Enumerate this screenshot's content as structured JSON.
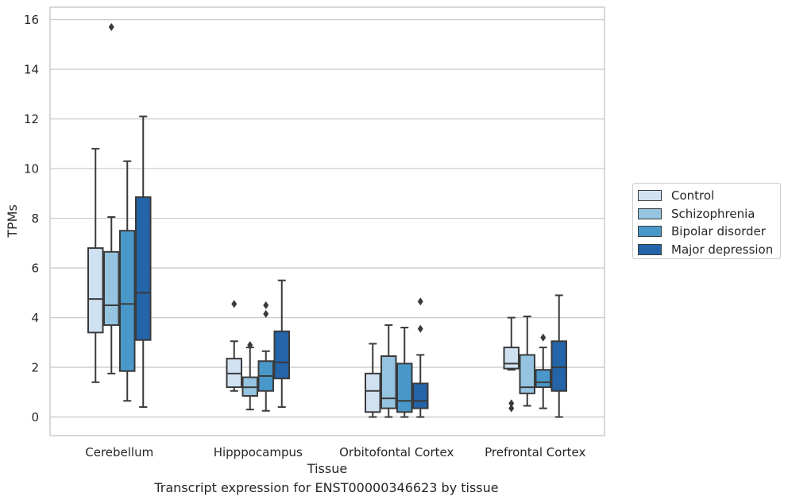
{
  "caption": "Transcript expression for ENST00000346623 by tissue",
  "colors": {
    "Control": "#d0e1f2",
    "Schizophrenia": "#94c4df",
    "Bipolar disorder": "#4a98c9",
    "Major depression": "#2464a8",
    "grid": "#cccccc",
    "box_line": "#3a3a3a"
  },
  "chart_data": {
    "type": "box",
    "xlabel": "Tissue",
    "ylabel": "TPMs",
    "ylim": [
      -0.75,
      16.5
    ],
    "yticks": [
      0,
      2,
      4,
      6,
      8,
      10,
      12,
      14,
      16
    ],
    "grid": "horizontal",
    "legend_position": "right",
    "categories": [
      "Cerebellum",
      "Hipppocampus",
      "Orbitofontal Cortex",
      "Prefrontal Cortex"
    ],
    "series": [
      {
        "name": "Control",
        "boxes": [
          {
            "whisker_low": 1.4,
            "q1": 3.4,
            "median": 4.75,
            "q3": 6.8,
            "whisker_high": 10.8,
            "outliers": []
          },
          {
            "whisker_low": 1.05,
            "q1": 1.2,
            "median": 1.75,
            "q3": 2.35,
            "whisker_high": 3.05,
            "outliers": [
              4.55
            ]
          },
          {
            "whisker_low": 0.0,
            "q1": 0.2,
            "median": 1.05,
            "q3": 1.75,
            "whisker_high": 2.95,
            "outliers": []
          },
          {
            "whisker_low": 1.9,
            "q1": 1.95,
            "median": 2.15,
            "q3": 2.8,
            "whisker_high": 4.0,
            "outliers": [
              0.55,
              0.35
            ]
          }
        ]
      },
      {
        "name": "Schizophrenia",
        "boxes": [
          {
            "whisker_low": 1.75,
            "q1": 3.7,
            "median": 4.5,
            "q3": 6.65,
            "whisker_high": 8.05,
            "outliers": [
              15.7
            ]
          },
          {
            "whisker_low": 0.3,
            "q1": 0.85,
            "median": 1.2,
            "q3": 1.6,
            "whisker_high": 2.8,
            "outliers": [
              2.9
            ]
          },
          {
            "whisker_low": 0.0,
            "q1": 0.35,
            "median": 0.75,
            "q3": 2.45,
            "whisker_high": 3.7,
            "outliers": []
          },
          {
            "whisker_low": 0.45,
            "q1": 0.95,
            "median": 1.2,
            "q3": 2.5,
            "whisker_high": 4.05,
            "outliers": []
          }
        ]
      },
      {
        "name": "Bipolar disorder",
        "boxes": [
          {
            "whisker_low": 0.65,
            "q1": 1.85,
            "median": 4.55,
            "q3": 7.5,
            "whisker_high": 10.3,
            "outliers": []
          },
          {
            "whisker_low": 0.25,
            "q1": 1.05,
            "median": 1.65,
            "q3": 2.25,
            "whisker_high": 2.65,
            "outliers": [
              4.5,
              4.15
            ]
          },
          {
            "whisker_low": 0.0,
            "q1": 0.2,
            "median": 0.65,
            "q3": 2.15,
            "whisker_high": 3.6,
            "outliers": []
          },
          {
            "whisker_low": 0.35,
            "q1": 1.2,
            "median": 1.4,
            "q3": 1.9,
            "whisker_high": 2.8,
            "outliers": [
              3.2
            ]
          }
        ]
      },
      {
        "name": "Major depression",
        "boxes": [
          {
            "whisker_low": 0.4,
            "q1": 3.1,
            "median": 5.0,
            "q3": 8.85,
            "whisker_high": 12.1,
            "outliers": []
          },
          {
            "whisker_low": 0.4,
            "q1": 1.55,
            "median": 2.2,
            "q3": 3.45,
            "whisker_high": 5.5,
            "outliers": []
          },
          {
            "whisker_low": 0.0,
            "q1": 0.35,
            "median": 0.65,
            "q3": 1.35,
            "whisker_high": 2.5,
            "outliers": [
              4.65,
              3.55
            ]
          },
          {
            "whisker_low": 0.0,
            "q1": 1.05,
            "median": 2.0,
            "q3": 3.05,
            "whisker_high": 4.9,
            "outliers": []
          }
        ]
      }
    ]
  }
}
